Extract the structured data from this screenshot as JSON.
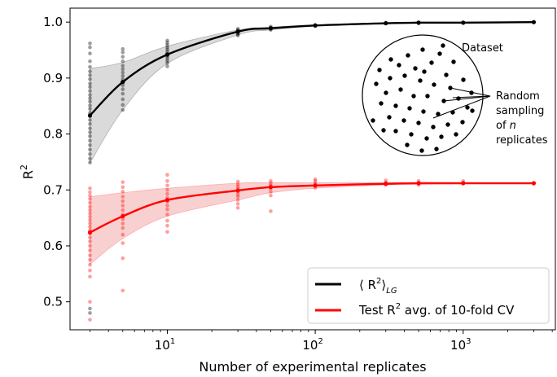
{
  "chart_data": {
    "type": "scatter",
    "xlabel": "Number of experimental replicates",
    "ylabel": "R",
    "ylabel_sup": "2",
    "xscale": "log",
    "xlim": [
      2.2,
      4200
    ],
    "ylim": [
      0.45,
      1.025
    ],
    "xticks": [
      {
        "value": 10,
        "base": "10",
        "exp": "1"
      },
      {
        "value": 100,
        "base": "10",
        "exp": "2"
      },
      {
        "value": 1000,
        "base": "10",
        "exp": "3"
      }
    ],
    "yticks": [
      {
        "value": 0.5,
        "label": "0.5"
      },
      {
        "value": 0.6,
        "label": "0.6"
      },
      {
        "value": 0.7,
        "label": "0.7"
      },
      {
        "value": 0.8,
        "label": "0.8"
      },
      {
        "value": 0.9,
        "label": "0.9"
      },
      {
        "value": 1.0,
        "label": "1.0"
      }
    ],
    "legend": {
      "position": "lower-right",
      "entries": [
        {
          "pre": "⟨ R",
          "sup": "2",
          "mid": "⟩",
          "sub": "LG",
          "post": "",
          "color": "#000000"
        },
        {
          "pre": "Test R",
          "sup": "2",
          "mid": " avg. of 10-fold CV",
          "sub": "",
          "post": "",
          "color": "#ff0000"
        }
      ]
    },
    "inset": {
      "title": "Dataset",
      "lines": [
        "Random",
        "sampling",
        "of n",
        "replicates"
      ]
    },
    "series": [
      {
        "name": "⟨R²⟩_LG",
        "color": "#000000",
        "band_color": "#bbbbbb",
        "x": [
          3,
          5,
          10,
          30,
          50,
          100,
          300,
          500,
          1000,
          3000
        ],
        "mean": [
          0.833,
          0.893,
          0.942,
          0.983,
          0.989,
          0.994,
          0.998,
          0.999,
          0.999,
          1.0
        ],
        "lower": [
          0.748,
          0.843,
          0.926,
          0.977,
          0.986,
          0.993,
          0.998,
          0.998,
          0.999,
          1.0
        ],
        "upper": [
          0.917,
          0.928,
          0.957,
          0.986,
          0.991,
          0.995,
          0.998,
          0.999,
          0.999,
          1.0
        ],
        "points": [
          [
            3,
            0.962
          ],
          [
            3,
            0.955
          ],
          [
            3,
            0.944
          ],
          [
            3,
            0.93
          ],
          [
            3,
            0.92
          ],
          [
            3,
            0.912
          ],
          [
            3,
            0.905
          ],
          [
            3,
            0.898
          ],
          [
            3,
            0.89
          ],
          [
            3,
            0.884
          ],
          [
            3,
            0.877
          ],
          [
            3,
            0.87
          ],
          [
            3,
            0.864
          ],
          [
            3,
            0.858
          ],
          [
            3,
            0.851
          ],
          [
            3,
            0.845
          ],
          [
            3,
            0.838
          ],
          [
            3,
            0.832
          ],
          [
            3,
            0.825
          ],
          [
            3,
            0.818
          ],
          [
            3,
            0.81
          ],
          [
            3,
            0.803
          ],
          [
            3,
            0.796
          ],
          [
            3,
            0.788
          ],
          [
            3,
            0.78
          ],
          [
            3,
            0.772
          ],
          [
            3,
            0.764
          ],
          [
            3,
            0.756
          ],
          [
            3,
            0.749
          ],
          [
            3,
            0.488
          ],
          [
            3,
            0.48
          ],
          [
            5,
            0.952
          ],
          [
            5,
            0.946
          ],
          [
            5,
            0.938
          ],
          [
            5,
            0.93
          ],
          [
            5,
            0.922
          ],
          [
            5,
            0.916
          ],
          [
            5,
            0.91
          ],
          [
            5,
            0.904
          ],
          [
            5,
            0.898
          ],
          [
            5,
            0.893
          ],
          [
            5,
            0.887
          ],
          [
            5,
            0.88
          ],
          [
            5,
            0.872
          ],
          [
            5,
            0.862
          ],
          [
            5,
            0.852
          ],
          [
            5,
            0.843
          ],
          [
            10,
            0.967
          ],
          [
            10,
            0.963
          ],
          [
            10,
            0.959
          ],
          [
            10,
            0.955
          ],
          [
            10,
            0.951
          ],
          [
            10,
            0.947
          ],
          [
            10,
            0.943
          ],
          [
            10,
            0.939
          ],
          [
            10,
            0.935
          ],
          [
            10,
            0.931
          ],
          [
            10,
            0.927
          ],
          [
            10,
            0.921
          ],
          [
            30,
            0.988
          ],
          [
            30,
            0.986
          ],
          [
            30,
            0.984
          ],
          [
            30,
            0.982
          ],
          [
            30,
            0.98
          ],
          [
            30,
            0.978
          ],
          [
            30,
            0.976
          ],
          [
            50,
            0.992
          ],
          [
            50,
            0.99
          ],
          [
            50,
            0.988
          ],
          [
            50,
            0.986
          ],
          [
            100,
            0.995
          ],
          [
            100,
            0.994
          ],
          [
            100,
            0.993
          ],
          [
            300,
            0.999
          ],
          [
            300,
            0.998
          ],
          [
            500,
            0.999
          ],
          [
            500,
            0.998
          ],
          [
            1000,
            0.999
          ],
          [
            3000,
            1.0
          ]
        ]
      },
      {
        "name": "Test R² avg. of 10-fold CV",
        "color": "#ff0000",
        "band_color": "#f4a9a9",
        "x": [
          3,
          5,
          10,
          30,
          50,
          100,
          300,
          500,
          1000,
          3000
        ],
        "mean": [
          0.624,
          0.653,
          0.682,
          0.699,
          0.705,
          0.708,
          0.711,
          0.712,
          0.712,
          0.712
        ],
        "lower": [
          0.567,
          0.613,
          0.653,
          0.682,
          0.695,
          0.703,
          0.709,
          0.71,
          0.711,
          0.712
        ],
        "upper": [
          0.688,
          0.695,
          0.703,
          0.712,
          0.713,
          0.713,
          0.713,
          0.713,
          0.713,
          0.713
        ],
        "points": [
          [
            3,
            0.703
          ],
          [
            3,
            0.696
          ],
          [
            3,
            0.69
          ],
          [
            3,
            0.684
          ],
          [
            3,
            0.677
          ],
          [
            3,
            0.67
          ],
          [
            3,
            0.664
          ],
          [
            3,
            0.658
          ],
          [
            3,
            0.652
          ],
          [
            3,
            0.646
          ],
          [
            3,
            0.64
          ],
          [
            3,
            0.634
          ],
          [
            3,
            0.628
          ],
          [
            3,
            0.622
          ],
          [
            3,
            0.615
          ],
          [
            3,
            0.608
          ],
          [
            3,
            0.6
          ],
          [
            3,
            0.592
          ],
          [
            3,
            0.583
          ],
          [
            3,
            0.575
          ],
          [
            3,
            0.566
          ],
          [
            3,
            0.556
          ],
          [
            3,
            0.545
          ],
          [
            3,
            0.5
          ],
          [
            3,
            0.468
          ],
          [
            5,
            0.714
          ],
          [
            5,
            0.705
          ],
          [
            5,
            0.697
          ],
          [
            5,
            0.688
          ],
          [
            5,
            0.68
          ],
          [
            5,
            0.672
          ],
          [
            5,
            0.664
          ],
          [
            5,
            0.656
          ],
          [
            5,
            0.648
          ],
          [
            5,
            0.64
          ],
          [
            5,
            0.632
          ],
          [
            5,
            0.62
          ],
          [
            5,
            0.605
          ],
          [
            5,
            0.578
          ],
          [
            5,
            0.52
          ],
          [
            10,
            0.727
          ],
          [
            10,
            0.716
          ],
          [
            10,
            0.708
          ],
          [
            10,
            0.7
          ],
          [
            10,
            0.693
          ],
          [
            10,
            0.686
          ],
          [
            10,
            0.679
          ],
          [
            10,
            0.672
          ],
          [
            10,
            0.665
          ],
          [
            10,
            0.656
          ],
          [
            10,
            0.645
          ],
          [
            10,
            0.636
          ],
          [
            10,
            0.625
          ],
          [
            30,
            0.715
          ],
          [
            30,
            0.71
          ],
          [
            30,
            0.706
          ],
          [
            30,
            0.702
          ],
          [
            30,
            0.697
          ],
          [
            30,
            0.692
          ],
          [
            30,
            0.688
          ],
          [
            30,
            0.682
          ],
          [
            30,
            0.675
          ],
          [
            30,
            0.668
          ],
          [
            50,
            0.716
          ],
          [
            50,
            0.712
          ],
          [
            50,
            0.708
          ],
          [
            50,
            0.703
          ],
          [
            50,
            0.697
          ],
          [
            50,
            0.69
          ],
          [
            50,
            0.662
          ],
          [
            100,
            0.719
          ],
          [
            100,
            0.716
          ],
          [
            100,
            0.712
          ],
          [
            100,
            0.708
          ],
          [
            100,
            0.704
          ],
          [
            300,
            0.717
          ],
          [
            300,
            0.713
          ],
          [
            300,
            0.709
          ],
          [
            500,
            0.716
          ],
          [
            500,
            0.712
          ],
          [
            500,
            0.709
          ],
          [
            1000,
            0.716
          ],
          [
            1000,
            0.712
          ],
          [
            3000,
            0.712
          ]
        ]
      }
    ]
  }
}
